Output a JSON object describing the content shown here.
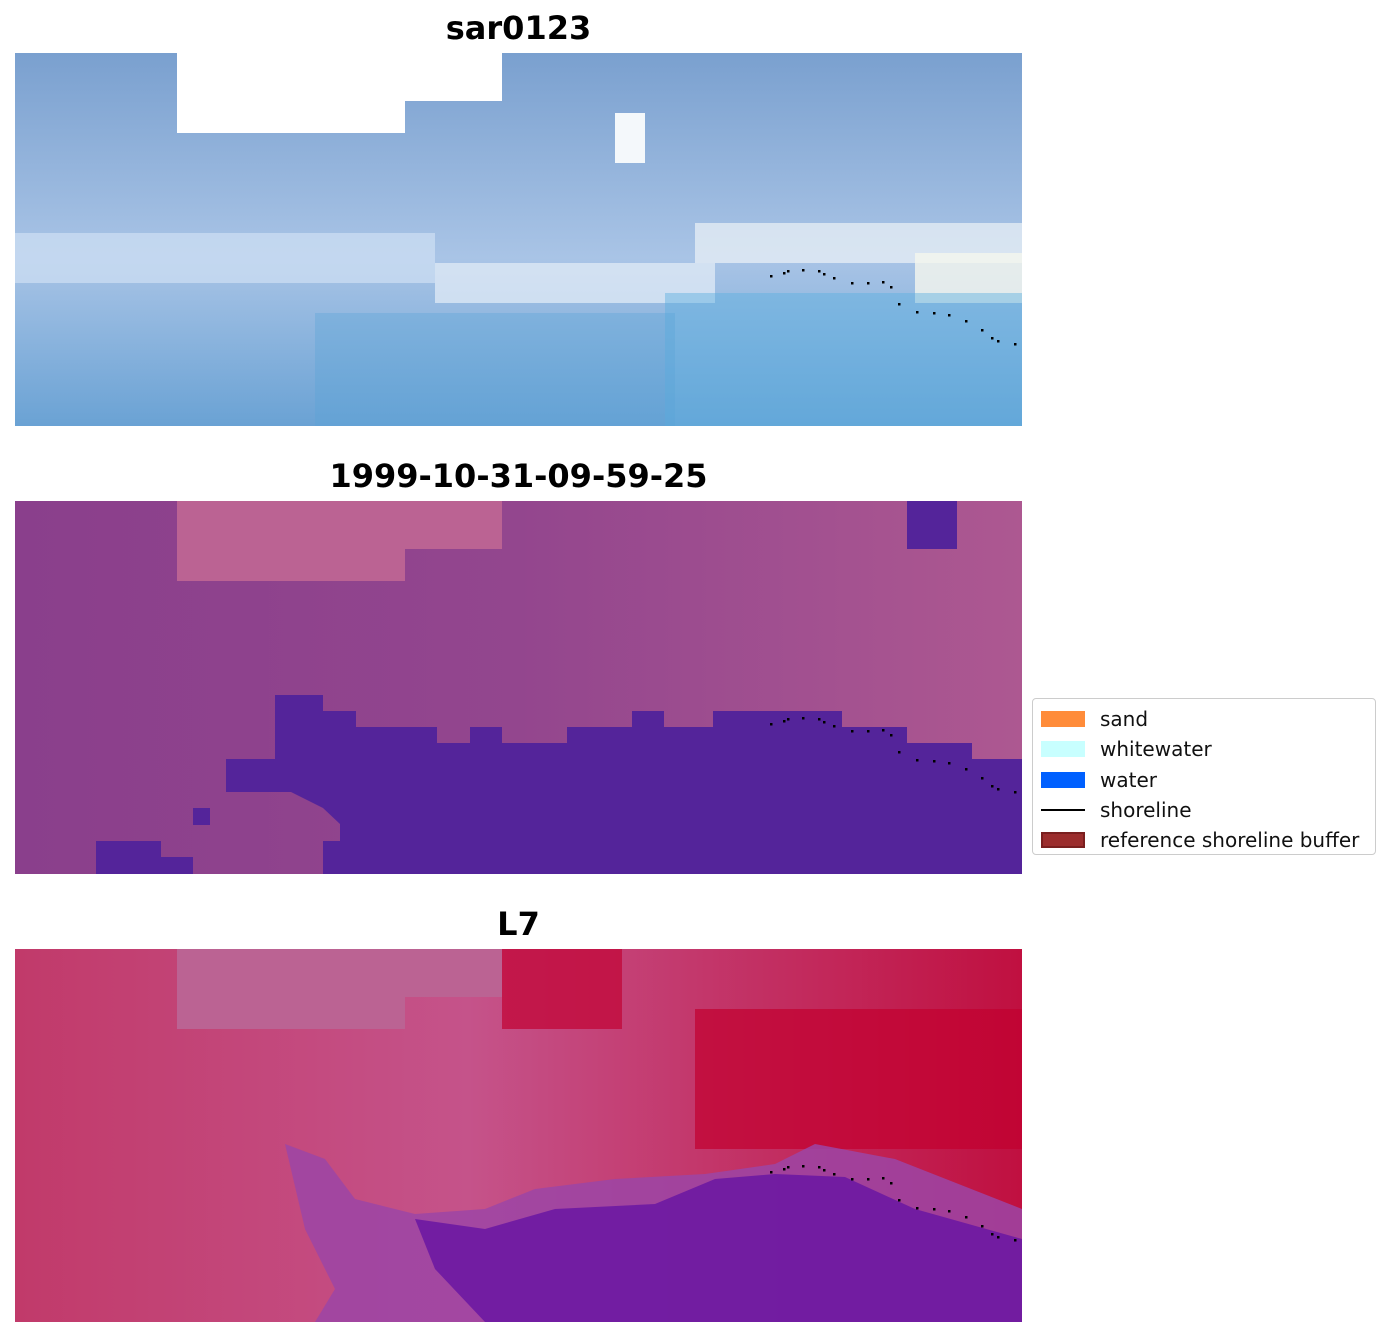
{
  "panels": [
    {
      "title": "sar0123",
      "palette": [
        "#6f9ccb",
        "#b9cbe6"
      ]
    },
    {
      "title": "1999-10-31-09-59-25",
      "palette": [
        "#8a3f8c",
        "#b8618f"
      ]
    },
    {
      "title": "L7",
      "palette": [
        "#c13a6a",
        "#c06292"
      ]
    }
  ],
  "legend": {
    "items": [
      {
        "label": "sand",
        "color": "#ff8c3a",
        "kind": "patch"
      },
      {
        "label": "whitewater",
        "color": "#c8ffff",
        "kind": "patch"
      },
      {
        "label": "water",
        "color": "#0060ff",
        "kind": "patch"
      },
      {
        "label": "shoreline",
        "color": "#000000",
        "kind": "line"
      },
      {
        "label": "reference shoreline buffer",
        "color": "#9b2d2d",
        "kind": "patch"
      }
    ]
  },
  "colors": {
    "water_mask": "#54249a",
    "nodata": "#bb6393",
    "shoreline": "#000000"
  }
}
